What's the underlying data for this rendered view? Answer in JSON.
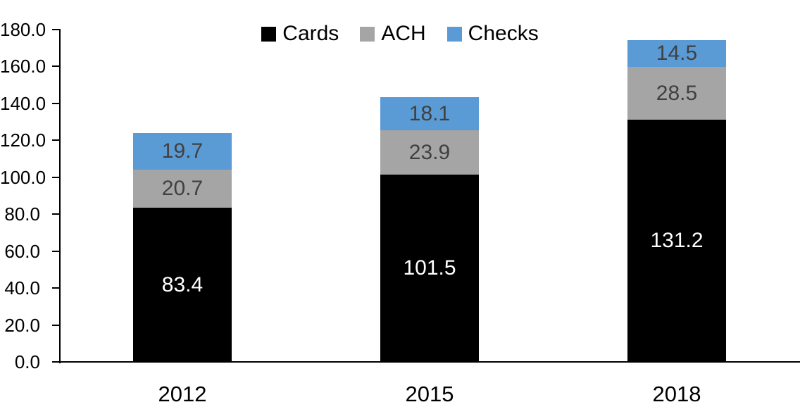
{
  "chart_data": {
    "type": "bar",
    "stacked": true,
    "title": "",
    "xlabel": "",
    "ylabel": "",
    "categories": [
      "2012",
      "2015",
      "2018"
    ],
    "series": [
      {
        "name": "Cards",
        "color": "#000000",
        "label_color": "#FFFFFF",
        "values": [
          83.4,
          101.5,
          131.2
        ]
      },
      {
        "name": "ACH",
        "color": "#A5A5A5",
        "label_color": "#404040",
        "values": [
          20.7,
          23.9,
          28.5
        ]
      },
      {
        "name": "Checks",
        "color": "#5B9BD5",
        "label_color": "#404040",
        "values": [
          19.7,
          18.1,
          14.5
        ]
      }
    ],
    "totals": [
      123.8,
      143.5,
      174.2
    ],
    "ylim": [
      0,
      180
    ],
    "yticks": [
      0,
      20,
      40,
      60,
      80,
      100,
      120,
      140,
      160,
      180
    ],
    "value_label_decimals": 1,
    "legend_position": "top-center",
    "grid": false,
    "axis_color": "#000000",
    "background_color": "#FFFFFF"
  }
}
